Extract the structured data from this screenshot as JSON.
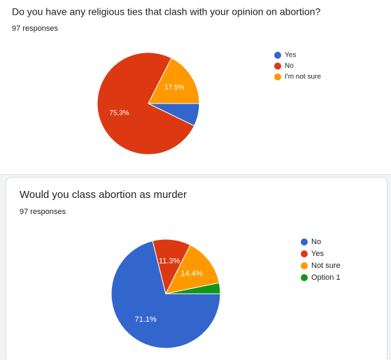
{
  "chart_data": [
    {
      "type": "pie",
      "title": "Do you have any religious ties that clash with your opinion on abortion?",
      "subtitle": "97 responses",
      "categories": [
        "Yes",
        "No",
        "I'm not sure"
      ],
      "values": [
        7.2,
        75.3,
        17.5
      ],
      "value_labels": [
        null,
        "75.3%",
        "17.5%"
      ],
      "colors": [
        "#3366cc",
        "#dc3912",
        "#ff9900"
      ]
    },
    {
      "type": "pie",
      "title": "Would you class abortion as murder",
      "subtitle": "97 responses",
      "categories": [
        "No",
        "Yes",
        "Not sure",
        "Option 1"
      ],
      "values": [
        71.1,
        11.3,
        14.4,
        3.2
      ],
      "value_labels": [
        "71.1%",
        "11.3%",
        "14.4%",
        null
      ],
      "colors": [
        "#3366cc",
        "#dc3912",
        "#ff9900",
        "#109618"
      ]
    }
  ]
}
